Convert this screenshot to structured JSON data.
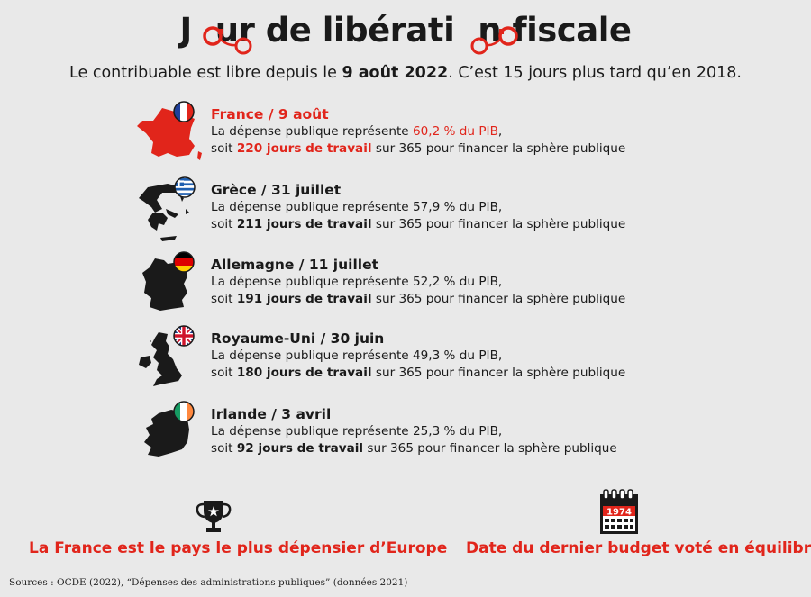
{
  "title": {
    "part1": "J",
    "part2": "ur de libérati",
    "part3": "n fiscale",
    "icon": "handcuffs-icon"
  },
  "subtitle": {
    "before": "Le contribuable est libre depuis le ",
    "date": "9 août 2022",
    "after": ". C’est 15 jours plus tard qu’en 2018."
  },
  "countries": [
    {
      "name": "France / 9 août",
      "line1_prefix": "La dépense publique représente ",
      "percent": "60,2 % du PIB",
      "line1_suffix": ",",
      "line2_prefix": "soit ",
      "days": "220 jours de travail",
      "line2_suffix": " sur 365 pour financer la sphère publique",
      "highlight": true,
      "map_color": "#e1251b",
      "flag": "france-flag-icon"
    },
    {
      "name": "Grèce / 31 juillet",
      "line1_prefix": "La dépense publique représente ",
      "percent": "57,9 % du PIB",
      "line1_suffix": ",",
      "line2_prefix": "soit ",
      "days": "211 jours de travail",
      "line2_suffix": " sur 365 pour financer la sphère publique",
      "highlight": false,
      "map_color": "#1a1a1a",
      "flag": "greece-flag-icon"
    },
    {
      "name": "Allemagne / 11 juillet",
      "line1_prefix": "La dépense publique représente ",
      "percent": "52,2 % du PIB",
      "line1_suffix": ",",
      "line2_prefix": "soit ",
      "days": "191 jours de travail",
      "line2_suffix": " sur 365 pour financer la sphère publique",
      "highlight": false,
      "map_color": "#1a1a1a",
      "flag": "germany-flag-icon"
    },
    {
      "name": "Royaume-Uni / 30 juin",
      "line1_prefix": "La dépense publique représente ",
      "percent": "49,3 % du PIB",
      "line1_suffix": ",",
      "line2_prefix": "soit ",
      "days": "180 jours de travail",
      "line2_suffix": " sur 365 pour financer la sphère publique",
      "highlight": false,
      "map_color": "#1a1a1a",
      "flag": "uk-flag-icon"
    },
    {
      "name": "Irlande / 3 avril",
      "line1_prefix": "La dépense publique représente ",
      "percent": "25,3 % du PIB",
      "line1_suffix": ",",
      "line2_prefix": "soit ",
      "days": "92 jours de travail",
      "line2_suffix": " sur 365 pour financer la sphère publique",
      "highlight": false,
      "map_color": "#1a1a1a",
      "flag": "ireland-flag-icon"
    }
  ],
  "bottom_left": {
    "text": "La France est le pays le plus dépensier d’Europe",
    "icon": "trophy-icon"
  },
  "bottom_right": {
    "text": "Date du dernier budget voté en équilibre",
    "icon": "calendar-icon",
    "calendar_year": "1974"
  },
  "sources": "Sources : OCDE (2022), “Dépenses des administrations publiques” (données 2021)",
  "colors": {
    "accent": "#e1251b",
    "text": "#1a1a1a",
    "background": "#e9e9e9"
  }
}
